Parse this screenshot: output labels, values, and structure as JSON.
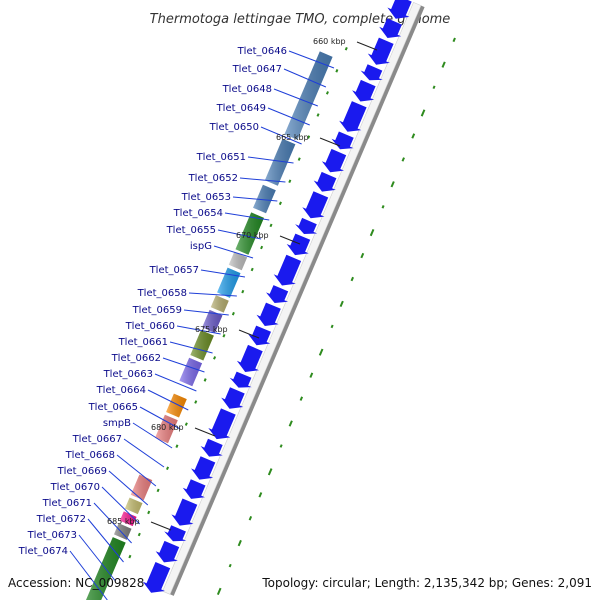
{
  "title": "Thermotoga lettingae TMO, complete genome",
  "footer": {
    "accession": "Accession: NC_009828",
    "topology": "Topology: circular; Length: 2,135,342 bp; Genes: 2,091"
  },
  "colors": {
    "forward_strand": "#1a1aee",
    "backbone": "#8a8a8a",
    "leader_line": "#1f3fd8",
    "gc_marks": "#2e8b1e",
    "label": "#0a0a8a"
  },
  "kbp_ticks": [
    "660 kbp",
    "665 kbp",
    "670 kbp",
    "675 kbp",
    "680 kbp",
    "685 kbp"
  ],
  "genes": [
    "Tlet_0646",
    "Tlet_0647",
    "Tlet_0648",
    "Tlet_0649",
    "Tlet_0650",
    "Tlet_0651",
    "Tlet_0652",
    "Tlet_0653",
    "Tlet_0654",
    "Tlet_0655",
    "ispG",
    "Tlet_0657",
    "Tlet_0658",
    "Tlet_0659",
    "Tlet_0660",
    "Tlet_0661",
    "Tlet_0662",
    "Tlet_0663",
    "Tlet_0664",
    "Tlet_0665",
    "smpB",
    "Tlet_0667",
    "Tlet_0668",
    "Tlet_0669",
    "Tlet_0670",
    "Tlet_0671",
    "Tlet_0672",
    "Tlet_0673",
    "Tlet_0674"
  ],
  "cog_blocks": [
    {
      "color": "#4a7fb8"
    },
    {
      "color": "#4a7fb8"
    },
    {
      "color": "#4a7fb8"
    },
    {
      "color": "#228b22"
    },
    {
      "color": "#c0c0c0"
    },
    {
      "color": "#1e9fef"
    },
    {
      "color": "#b8b070"
    },
    {
      "color": "#6a5acd"
    },
    {
      "color": "#6b8e23"
    },
    {
      "color": "#7b68ee"
    },
    {
      "color": "#ff8c00"
    },
    {
      "color": "#f08080"
    },
    {
      "color": "#f08080"
    },
    {
      "color": "#c8c070"
    },
    {
      "color": "#ff1493"
    },
    {
      "color": "#808080"
    },
    {
      "color": "#228b22"
    }
  ]
}
